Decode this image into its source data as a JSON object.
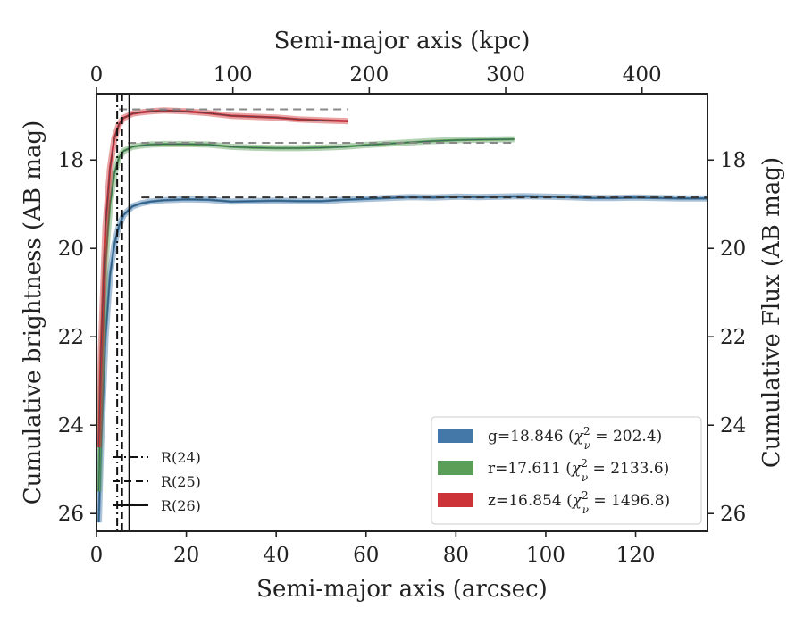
{
  "chart_data": {
    "type": "line",
    "xlabel": "Semi-major axis (arcsec)",
    "ylabel": "Cumulative brightness (AB mag)",
    "x2label": "Semi-major axis (kpc)",
    "y2label": "Cumulative Flux (AB mag)",
    "xlim": [
      0,
      136
    ],
    "ylim": [
      26.4,
      16.5
    ],
    "x2lim": [
      0,
      448
    ],
    "x_ticks": [
      0,
      20,
      40,
      60,
      80,
      100,
      120
    ],
    "x_tick_labels": [
      "0",
      "20",
      "40",
      "60",
      "80",
      "100",
      "120"
    ],
    "x2_ticks": [
      0,
      100,
      200,
      300,
      400
    ],
    "x2_tick_labels": [
      "0",
      "100",
      "200",
      "300",
      "400"
    ],
    "y_ticks": [
      18,
      20,
      22,
      24,
      26
    ],
    "y_tick_labels": [
      "18",
      "20",
      "22",
      "24",
      "26"
    ],
    "y2_tick_labels": [
      "18",
      "20",
      "22",
      "24",
      "26"
    ],
    "grid": false,
    "legend_position": "lower-right",
    "series": [
      {
        "name": "g=18.846 (χν² = 202.4)",
        "label_main": "g=18.846 (",
        "label_chi": "χ",
        "label_sub": "ν",
        "label_sup": "2",
        "label_rest": " = 202.4)",
        "color": "#4378a8",
        "model_value": 18.846,
        "model_x_start": 10,
        "model_x_end": 136,
        "x": [
          0.5,
          1,
          2,
          3,
          4,
          5,
          6,
          8,
          10,
          12,
          15,
          20,
          25,
          30,
          35,
          40,
          45,
          50,
          55,
          60,
          65,
          70,
          75,
          80,
          85,
          90,
          95,
          100,
          105,
          110,
          115,
          120,
          125,
          130,
          136
        ],
        "y": [
          26.2,
          24.5,
          22.0,
          20.6,
          19.9,
          19.5,
          19.25,
          19.05,
          18.98,
          18.94,
          18.91,
          18.89,
          18.9,
          18.94,
          18.93,
          18.92,
          18.93,
          18.93,
          18.9,
          18.88,
          18.86,
          18.84,
          18.85,
          18.83,
          18.84,
          18.83,
          18.82,
          18.83,
          18.84,
          18.86,
          18.86,
          18.85,
          18.86,
          18.87,
          18.87
        ]
      },
      {
        "name": "r=17.611 (χν² = 2133.6)",
        "label_main": "r=17.611 (",
        "label_chi": "χ",
        "label_sub": "ν",
        "label_sup": "2",
        "label_rest": " = 2133.6)",
        "color": "#5a9e58",
        "model_value": 17.611,
        "model_x_start": 7,
        "model_x_end": 93,
        "x": [
          0.5,
          1,
          2,
          3,
          4,
          5,
          6,
          8,
          10,
          12,
          15,
          20,
          25,
          30,
          35,
          40,
          45,
          50,
          55,
          60,
          65,
          70,
          75,
          80,
          85,
          93
        ],
        "y": [
          25.5,
          23.2,
          20.3,
          19.0,
          18.3,
          17.95,
          17.8,
          17.7,
          17.67,
          17.65,
          17.64,
          17.64,
          17.65,
          17.7,
          17.72,
          17.73,
          17.73,
          17.72,
          17.7,
          17.66,
          17.63,
          17.6,
          17.57,
          17.55,
          17.54,
          17.53
        ]
      },
      {
        "name": "z=16.854 (χν² = 1496.8)",
        "label_main": "z=16.854 (",
        "label_chi": "χ",
        "label_sub": "ν",
        "label_sup": "2",
        "label_rest": " = 1496.8)",
        "color": "#cc3338",
        "model_value": 16.854,
        "model_x_start": 5,
        "model_x_end": 56,
        "x": [
          0.5,
          1,
          2,
          3,
          4,
          5,
          6,
          8,
          10,
          12,
          15,
          20,
          25,
          30,
          35,
          40,
          45,
          50,
          56
        ],
        "y": [
          24.5,
          22.3,
          19.5,
          18.2,
          17.5,
          17.2,
          17.05,
          16.95,
          16.92,
          16.9,
          16.88,
          16.9,
          16.94,
          17.0,
          17.02,
          17.04,
          17.08,
          17.1,
          17.12
        ]
      }
    ],
    "vlines": [
      {
        "name": "R(24)",
        "x": 4.6,
        "style": "dashdot"
      },
      {
        "name": "R(25)",
        "x": 5.7,
        "style": "dashed"
      },
      {
        "name": "R(26)",
        "x": 7.3,
        "style": "solid"
      }
    ]
  }
}
